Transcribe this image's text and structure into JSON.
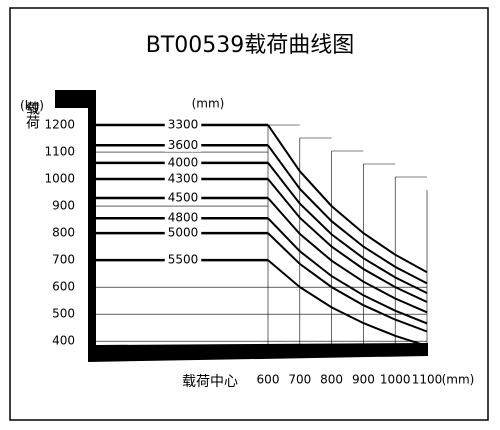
{
  "chart_data": {
    "type": "line",
    "title": "BT00539载荷曲线图",
    "y_unit": "(kg)",
    "y_label": "载荷",
    "x_label": "载荷中心",
    "x_unit": "(mm)",
    "series_unit": "(mm)",
    "x": [
      600,
      700,
      800,
      900,
      1000,
      1100
    ],
    "xlim": [
      600,
      1100
    ],
    "xticks": [
      600,
      700,
      800,
      900,
      1000,
      1100
    ],
    "ylim": [
      360,
      1200
    ],
    "yticks": [
      400,
      500,
      600,
      700,
      800,
      900,
      1000,
      1100,
      1200
    ],
    "color": "#000000",
    "series": [
      {
        "name": "3300",
        "values": [
          1200,
          1029,
          900,
          800,
          720,
          655
        ]
      },
      {
        "name": "3600",
        "values": [
          1125,
          964,
          844,
          750,
          675,
          614
        ]
      },
      {
        "name": "4000",
        "values": [
          1060,
          909,
          795,
          707,
          636,
          578
        ]
      },
      {
        "name": "4300",
        "values": [
          1000,
          857,
          750,
          667,
          600,
          545
        ]
      },
      {
        "name": "4500",
        "values": [
          930,
          797,
          698,
          620,
          558,
          507
        ]
      },
      {
        "name": "4800",
        "values": [
          855,
          733,
          641,
          570,
          513,
          466
        ]
      },
      {
        "name": "5000",
        "values": [
          800,
          686,
          600,
          533,
          480,
          436
        ]
      },
      {
        "name": "5500",
        "values": [
          700,
          600,
          525,
          467,
          420,
          382
        ]
      }
    ]
  }
}
